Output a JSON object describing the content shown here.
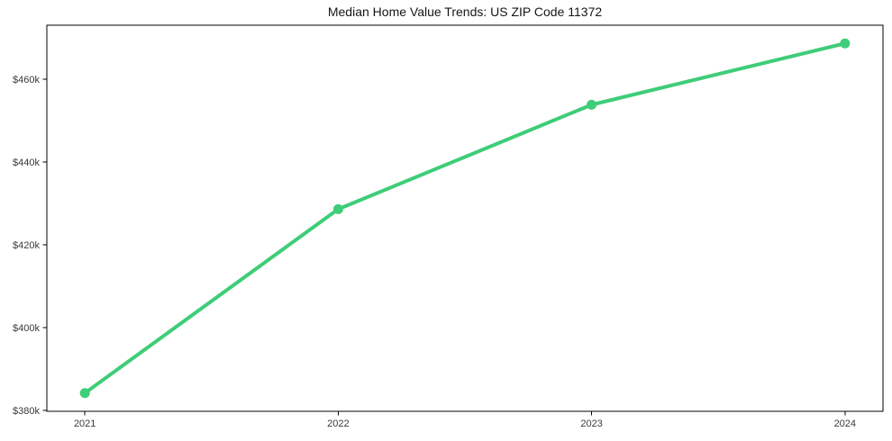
{
  "chart_data": {
    "type": "line",
    "title": "Median Home Value Trends: US ZIP Code 11372",
    "xlabel": "",
    "ylabel": "",
    "x": [
      2021,
      2022,
      2023,
      2024
    ],
    "x_tick_labels": [
      "2021",
      "2022",
      "2023",
      "2024"
    ],
    "series": [
      {
        "name": "Median Home Value",
        "values": [
          384200,
          428600,
          453800,
          468600
        ]
      }
    ],
    "y_ticks": [
      380000,
      400000,
      420000,
      440000,
      460000
    ],
    "y_tick_labels": [
      "$380k",
      "$400k",
      "$420k",
      "$440k",
      "$460k"
    ],
    "xlim": [
      2020.85,
      2024.15
    ],
    "ylim": [
      379800,
      473000
    ],
    "grid": false,
    "legend": "none",
    "line_color": "#3ecd78",
    "marker": "circle",
    "spine_color": "#000000",
    "tick_label_color": "#3a3a3a",
    "background_color": "#ffffff"
  }
}
